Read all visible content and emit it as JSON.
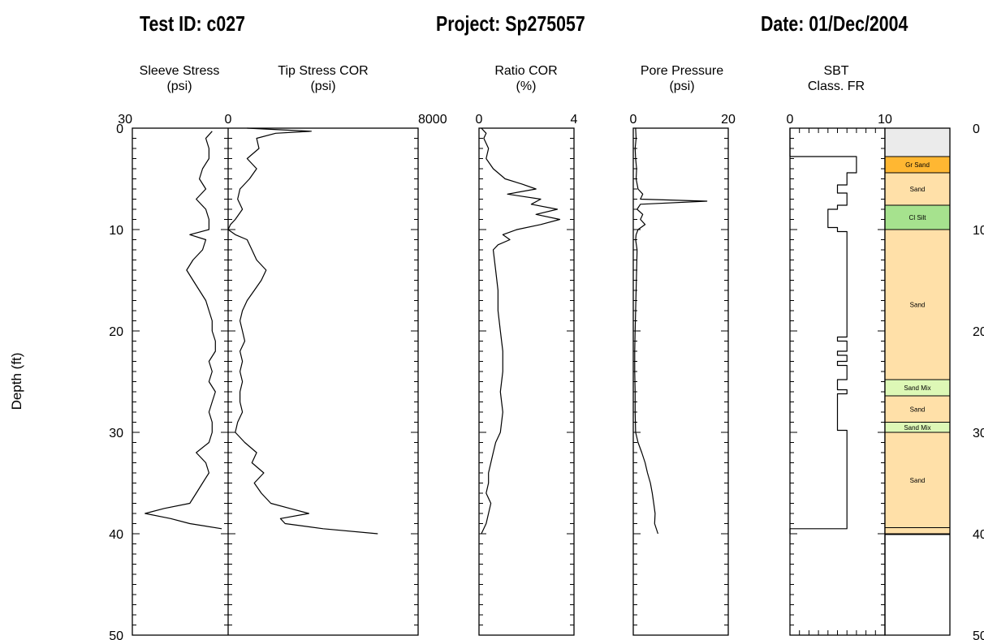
{
  "header": {
    "test_id": "Test ID: c027",
    "project": "Project: Sp275057",
    "date": "Date: 01/Dec/2004"
  },
  "chart_data": {
    "type": "line",
    "y_axis": {
      "label": "Depth  (ft)",
      "range": [
        0,
        50
      ],
      "ticks": [
        0,
        10,
        20,
        30,
        40,
        50
      ],
      "inverted": true
    },
    "panels": [
      {
        "id": "sleeve",
        "title": "Sleeve Stress",
        "unit": "(psi)",
        "xlim": [
          30,
          0
        ],
        "tick_labels": [
          "30",
          "0"
        ],
        "series": [
          {
            "depth": [
              0.3,
              1,
              2,
              3,
              4,
              5,
              6,
              7,
              8,
              9,
              10,
              10.5,
              11,
              12,
              13,
              14,
              15,
              16,
              17,
              18,
              19,
              20,
              21,
              22,
              23,
              24,
              25,
              26,
              27,
              28,
              29,
              30,
              31,
              32,
              33,
              34,
              35,
              36,
              37,
              37.5,
              38,
              38.5,
              39,
              39.5
            ],
            "values": [
              5,
              7,
              6,
              6,
              8,
              9,
              7,
              10,
              7,
              6,
              6,
              12,
              7,
              8,
              11,
              13,
              11,
              9,
              7,
              6,
              5,
              5,
              4,
              4,
              6,
              5,
              6,
              4,
              5,
              6,
              5,
              5,
              6,
              10,
              7,
              6,
              8,
              10,
              12,
              20,
              26,
              18,
              12,
              2
            ]
          }
        ]
      },
      {
        "id": "tip",
        "title": "Tip Stress COR",
        "unit": "(psi)",
        "xlim": [
          0,
          8000
        ],
        "tick_labels": [
          "0",
          "8000"
        ],
        "series": [
          {
            "depth": [
              0,
              0.3,
              0.5,
              1,
              2,
              3,
              4,
              5,
              6,
              7,
              8,
              9,
              9.5,
              10,
              10.5,
              11,
              12,
              13,
              14,
              15,
              16,
              17,
              18,
              19,
              20,
              21,
              22,
              23,
              24,
              25,
              26,
              27,
              28,
              29,
              30,
              31,
              32,
              33,
              34,
              35,
              36,
              37,
              37.5,
              38,
              38.5,
              39,
              39.5,
              40
            ],
            "values": [
              800,
              3500,
              2000,
              1200,
              1300,
              800,
              1200,
              900,
              500,
              400,
              600,
              300,
              100,
              0,
              300,
              800,
              1000,
              1200,
              1600,
              1400,
              1100,
              800,
              600,
              500,
              600,
              700,
              500,
              600,
              500,
              600,
              500,
              500,
              600,
              400,
              300,
              700,
              1200,
              1000,
              1500,
              1100,
              1400,
              1800,
              2600,
              3400,
              2200,
              2400,
              4000,
              6300
            ]
          }
        ]
      },
      {
        "id": "ratio",
        "title": "Ratio COR",
        "unit": "(%)",
        "xlim": [
          0,
          4
        ],
        "tick_labels": [
          "0",
          "4"
        ],
        "series": [
          {
            "depth": [
              0,
              0.5,
              1,
              2,
              3,
              4,
              5,
              5.5,
              6,
              6.5,
              7,
              7.5,
              8,
              8.5,
              9,
              9.5,
              10,
              10.5,
              11,
              11.5,
              12,
              14,
              16,
              18,
              20,
              22,
              24,
              26,
              28,
              30,
              31,
              32,
              33,
              34,
              35,
              36,
              37,
              38,
              39,
              40
            ],
            "values": [
              0.1,
              0.3,
              0.2,
              0.4,
              0.3,
              0.6,
              1.1,
              1.8,
              2.4,
              1.2,
              2.6,
              2.2,
              3.3,
              2.4,
              3.4,
              2.6,
              1.6,
              1.0,
              1.3,
              0.8,
              0.6,
              0.7,
              0.8,
              0.8,
              0.9,
              1.0,
              1.0,
              0.9,
              1.0,
              0.9,
              0.7,
              0.6,
              0.5,
              0.4,
              0.4,
              0.3,
              0.5,
              0.4,
              0.3,
              0.1
            ]
          }
        ]
      },
      {
        "id": "pore",
        "title": "Pore Pressure",
        "unit": "(psi)",
        "xlim": [
          0,
          20
        ],
        "tick_labels": [
          "0",
          "20"
        ],
        "series": [
          {
            "depth": [
              0,
              1,
              2,
              3,
              4,
              5,
              6,
              6.5,
              7,
              7.2,
              7.5,
              8,
              8.5,
              9,
              9.5,
              10,
              10.5,
              11,
              12,
              14,
              16,
              18,
              20,
              22,
              24,
              26,
              28,
              30,
              31,
              32,
              33,
              34,
              35,
              36,
              37,
              38,
              39,
              40
            ],
            "values": [
              0.5,
              0.6,
              0.4,
              0.5,
              0.7,
              0.6,
              1.0,
              2.0,
              1.5,
              15.5,
              1.5,
              0.8,
              2.0,
              1.5,
              2.5,
              1.0,
              0.6,
              0.5,
              0.8,
              0.7,
              0.6,
              0.5,
              0.4,
              0.3,
              0.3,
              0.4,
              0.4,
              0.5,
              1.0,
              1.8,
              2.5,
              3.0,
              3.6,
              4.0,
              4.3,
              4.6,
              4.5,
              5.2
            ]
          }
        ]
      },
      {
        "id": "sbt",
        "title": "SBT",
        "unit": "Class. FR",
        "xlim": [
          0,
          10
        ],
        "tick_labels": [
          "0",
          "10"
        ],
        "series": [
          {
            "depth": [
              0,
              2.8,
              2.8,
              4.4,
              4.4,
              5.6,
              5.6,
              6.4,
              6.4,
              7.6,
              7.6,
              8.0,
              8.0,
              9.8,
              9.8,
              10.2,
              10.2,
              20.6,
              20.6,
              21.0,
              21.0,
              22.0,
              22.0,
              22.4,
              22.4,
              23.0,
              23.0,
              23.4,
              23.4,
              24.8,
              24.8,
              25.8,
              25.8,
              26.2,
              26.2,
              29.8,
              29.8,
              39.5,
              39.5,
              40
            ],
            "values": [
              0,
              0,
              7,
              7,
              6,
              6,
              5,
              5,
              6,
              6,
              5,
              5,
              4,
              4,
              5,
              5,
              6,
              6,
              5,
              5,
              6,
              6,
              5,
              5,
              6,
              6,
              5,
              5,
              6,
              6,
              5,
              5,
              6,
              6,
              5,
              5,
              6,
              6,
              0,
              0
            ]
          }
        ]
      }
    ],
    "soil_column": [
      {
        "top": 0,
        "bottom": 2.8,
        "label": "",
        "color": "#ebebeb"
      },
      {
        "top": 2.8,
        "bottom": 4.4,
        "label": "Gr Sand",
        "color": "#ffb732"
      },
      {
        "top": 4.4,
        "bottom": 7.6,
        "label": "Sand",
        "color": "#ffe0a8"
      },
      {
        "top": 7.6,
        "bottom": 10.0,
        "label": "Cl Silt",
        "color": "#a6e28e"
      },
      {
        "top": 10.0,
        "bottom": 24.8,
        "label": "Sand",
        "color": "#ffe0a8"
      },
      {
        "top": 24.8,
        "bottom": 26.4,
        "label": "Sand Mix",
        "color": "#ddf8b6"
      },
      {
        "top": 26.4,
        "bottom": 29.0,
        "label": "Sand",
        "color": "#ffe0a8"
      },
      {
        "top": 29.0,
        "bottom": 30.0,
        "label": "Sand Mix",
        "color": "#ddf8b6"
      },
      {
        "top": 30.0,
        "bottom": 39.4,
        "label": "Sand",
        "color": "#ffe0a8"
      },
      {
        "top": 39.4,
        "bottom": 40.0,
        "label": "",
        "color": "#ffe0a8"
      }
    ]
  }
}
